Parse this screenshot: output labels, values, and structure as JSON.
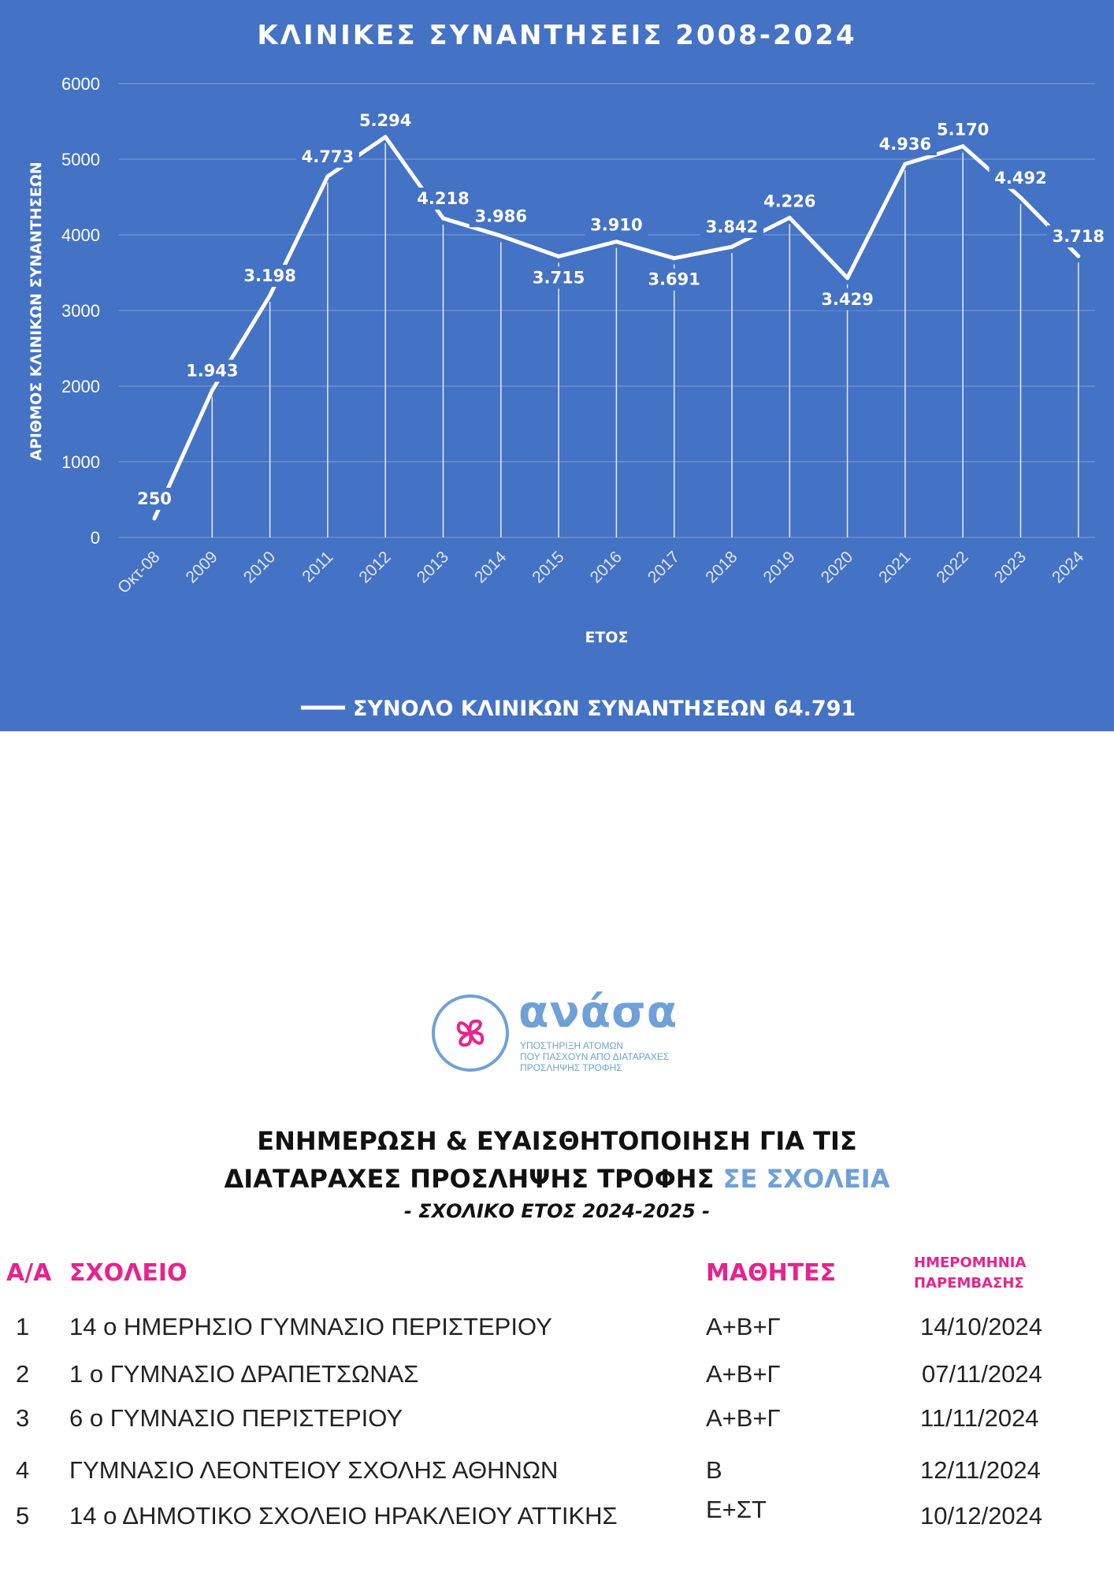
{
  "chart_data": {
    "type": "line",
    "title": "ΚΛΙΝΙΚΕΣ ΣΥΝΑΝΤΗΣΕΙΣ 2008-2024",
    "xlabel": "ΕΤΟΣ",
    "ylabel": "ΑΡΙΘΜΟΣ ΚΛΙΝΙΚΩΝ ΣΥΝΑΝΤΗΣΕΩΝ",
    "ylim": [
      0,
      6000
    ],
    "yticks": [
      0,
      1000,
      2000,
      3000,
      4000,
      5000,
      6000
    ],
    "grid": true,
    "legend_position": "bottom",
    "categories": [
      "Οκτ-08",
      "2009",
      "2010",
      "2011",
      "2012",
      "2013",
      "2014",
      "2015",
      "2016",
      "2017",
      "2018",
      "2019",
      "2020",
      "2021",
      "2022",
      "2023",
      "2024"
    ],
    "series": [
      {
        "name": "ΣΥΝΟΛΟ ΚΛΙΝΙΚΩΝ ΣΥΝΑΝΤΗΣΕΩΝ 64.791",
        "values": [
          250,
          1943,
          3198,
          4773,
          5294,
          4218,
          3986,
          3715,
          3910,
          3691,
          3842,
          4226,
          3429,
          4936,
          5170,
          4492,
          3718
        ],
        "data_labels": [
          "250",
          "1.943",
          "3.198",
          "4.773",
          "5.294",
          "4.218",
          "3.986",
          "3.715",
          "3.910",
          "3.691",
          "3.842",
          "4.226",
          "3.429",
          "4.936",
          "5.170",
          "4.492",
          "3.718"
        ]
      }
    ],
    "colors": {
      "background": "#4472c4",
      "line": "#ffffff",
      "grid": "#6d8fd0"
    }
  },
  "logo": {
    "name": "ανάσα",
    "tagline": [
      "ΥΠΟΣΤΗΡΙΞΗ ΑΤΟΜΩΝ",
      "ΠΟΥ ΠΑΣΧΟΥΝ ΑΠΟ ΔΙΑΤΑΡΑΧΕΣ",
      "ΠΡΟΣΛΗΨΗΣ ΤΡΟΦΗΣ"
    ],
    "colors": {
      "blue": "#6fa0d8",
      "pink": "#e6238e"
    }
  },
  "heading": {
    "line1": "ΕΝΗΜΕΡΩΣΗ & ΕΥΑΙΣΘΗΤΟΠΟΙΗΣΗ ΓΙΑ ΤΙΣ",
    "line2_main": "ΔΙΑΤΑΡΑΧΕΣ ΠΡΟΣΛΗΨΗΣ ΤΡΟΦΗΣ",
    "line2_accent": "ΣΕ ΣΧΟΛΕΙΑ",
    "subtitle": "- ΣΧΟΛΙΚΟ ΕΤΟΣ 2024-2025 -"
  },
  "table": {
    "headers": {
      "index": "Α/Α",
      "school": "ΣΧΟΛΕΙΟ",
      "students": "ΜΑΘΗΤΕΣ",
      "date": "ΗΜΕΡΟΜΗΝΙΑ ΠΑΡΕΜΒΑΣΗΣ"
    },
    "rows": [
      {
        "index": "1",
        "school": "14 ο ΗΜΕΡΗΣΙΟ ΓΥΜΝΑΣΙΟ ΠΕΡΙΣΤΕΡΙΟΥ",
        "students": "Α+Β+Γ",
        "date": "14/10/2024"
      },
      {
        "index": "2",
        "school": "1 ο ΓΥΜΝΑΣΙΟ ΔΡΑΠΕΤΣΩΝΑΣ",
        "students": "Α+Β+Γ",
        "date": "07/11/2024"
      },
      {
        "index": "3",
        "school": "6 ο ΓΥΜΝΑΣΙΟ ΠΕΡΙΣΤΕΡΙΟΥ",
        "students": "Α+Β+Γ",
        "date": "11/11/2024"
      },
      {
        "index": "4",
        "school": "ΓΥΜΝΑΣΙΟ ΛΕΟΝΤΕΙΟΥ ΣΧΟΛΗΣ ΑΘΗΝΩΝ",
        "students": "Β",
        "date": "12/11/2024"
      },
      {
        "index": "5",
        "school": "14 ο ΔΗΜΟΤΙΚΟ ΣΧΟΛΕΙΟ ΗΡΑΚΛΕΙΟΥ ΑΤΤΙΚΗΣ",
        "students": "Ε+ΣΤ",
        "date": "10/12/2024"
      }
    ]
  }
}
